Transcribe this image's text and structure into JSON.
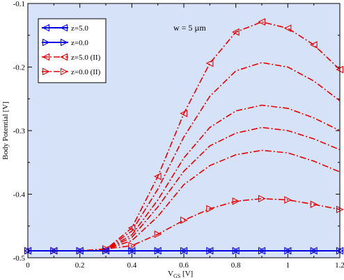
{
  "chart_data": {
    "type": "line",
    "title": "",
    "xlabel_main": "V",
    "xlabel_sub": "GS",
    "xlabel_unit": " [V]",
    "ylabel": "Body Potential [V]",
    "xlim": [
      0,
      1.2
    ],
    "ylim": [
      -0.5,
      -0.1
    ],
    "xticks": [
      0,
      0.2,
      0.4,
      0.6,
      0.8,
      1,
      1.2
    ],
    "xtick_labels": [
      "0",
      "0.2",
      "0.4",
      "0.6",
      "0.8",
      "1",
      "1.2"
    ],
    "yticks": [
      -0.5,
      -0.4,
      -0.3,
      -0.2,
      -0.1
    ],
    "ytick_labels": [
      "-0.5",
      "-0.4",
      "-0.3",
      "-0.2",
      "-0.1"
    ],
    "annotation": "w = 5 µm",
    "legend_position": "top-left",
    "grid": false,
    "colors": {
      "blue": "#0000e6",
      "red": "#e60000",
      "plot_bg": "#d6e2f7"
    },
    "x": [
      0,
      0.1,
      0.2,
      0.3,
      0.4,
      0.5,
      0.6,
      0.7,
      0.8,
      0.9,
      1.0,
      1.1,
      1.2
    ],
    "series": [
      {
        "name": "z=5.0",
        "color": "#0000e6",
        "style": "solid",
        "marker": "triangle-left",
        "values": [
          -0.489,
          -0.489,
          -0.489,
          -0.489,
          -0.489,
          -0.489,
          -0.489,
          -0.489,
          -0.489,
          -0.489,
          -0.489,
          -0.489,
          -0.489
        ]
      },
      {
        "name": "z=0.0",
        "color": "#0000e6",
        "style": "solid",
        "marker": "triangle-right",
        "values": [
          -0.489,
          -0.489,
          -0.489,
          -0.489,
          -0.489,
          -0.489,
          -0.489,
          -0.489,
          -0.489,
          -0.489,
          -0.489,
          -0.489,
          -0.489
        ]
      },
      {
        "name": "z=5.0 (II)",
        "color": "#e60000",
        "style": "dashdot",
        "marker": "triangle-left",
        "values": [
          -0.489,
          -0.489,
          -0.489,
          -0.487,
          -0.453,
          -0.372,
          -0.273,
          -0.194,
          -0.145,
          -0.129,
          -0.139,
          -0.165,
          -0.204
        ]
      },
      {
        "name": "",
        "color": "#e60000",
        "style": "dashdot",
        "marker": "none",
        "values": [
          -0.489,
          -0.489,
          -0.489,
          -0.487,
          -0.458,
          -0.392,
          -0.31,
          -0.246,
          -0.206,
          -0.193,
          -0.2,
          -0.222,
          -0.253
        ]
      },
      {
        "name": "",
        "color": "#e60000",
        "style": "dashdot",
        "marker": "none",
        "values": [
          -0.489,
          -0.489,
          -0.489,
          -0.487,
          -0.464,
          -0.409,
          -0.343,
          -0.295,
          -0.269,
          -0.26,
          -0.265,
          -0.28,
          -0.3
        ]
      },
      {
        "name": "",
        "color": "#e60000",
        "style": "dashdot",
        "marker": "none",
        "values": [
          -0.489,
          -0.489,
          -0.489,
          -0.487,
          -0.468,
          -0.42,
          -0.364,
          -0.324,
          -0.304,
          -0.295,
          -0.3,
          -0.313,
          -0.33
        ]
      },
      {
        "name": "",
        "color": "#e60000",
        "style": "dashdot",
        "marker": "none",
        "values": [
          -0.489,
          -0.489,
          -0.489,
          -0.487,
          -0.473,
          -0.435,
          -0.385,
          -0.355,
          -0.338,
          -0.331,
          -0.335,
          -0.348,
          -0.365
        ]
      },
      {
        "name": "z=0.0 (II)",
        "color": "#e60000",
        "style": "dashdot",
        "marker": "triangle-right",
        "values": [
          -0.489,
          -0.489,
          -0.489,
          -0.486,
          -0.481,
          -0.463,
          -0.441,
          -0.423,
          -0.411,
          -0.407,
          -0.409,
          -0.416,
          -0.424
        ]
      }
    ]
  }
}
